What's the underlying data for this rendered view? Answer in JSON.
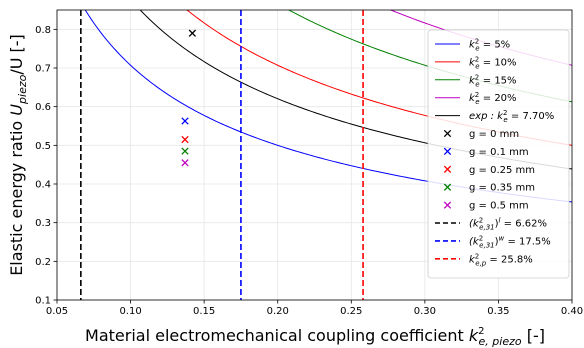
{
  "chart_data": {
    "type": "line",
    "xlabel": "Material electromechanical coupling coefficient",
    "xlabel_symbol": "k",
    "xlabel_sup": "2",
    "xlabel_sub": "e, piezo",
    "xlabel_unit": " [-]",
    "ylabel": "Elastic energy ratio",
    "ylabel_symbol": "U",
    "ylabel_sub": "piezo",
    "ylabel_tail": "/U [-]",
    "xlim": [
      0.05,
      0.4
    ],
    "ylim": [
      0.1,
      0.85
    ],
    "xticks": [
      0.05,
      0.1,
      0.15,
      0.2,
      0.25,
      0.3,
      0.35,
      0.4
    ],
    "xtick_labels": [
      "0.05",
      "0.10",
      "0.15",
      "0.20",
      "0.25",
      "0.30",
      "0.35",
      "0.40"
    ],
    "yticks": [
      0.1,
      0.2,
      0.3,
      0.4,
      0.5,
      0.6,
      0.7,
      0.8
    ],
    "ytick_labels": [
      "0.1",
      "0.2",
      "0.3",
      "0.4",
      "0.5",
      "0.6",
      "0.7",
      "0.8"
    ],
    "grid": true,
    "legend_position": "right",
    "curves": [
      {
        "label_pre": "k",
        "label_sup": "2",
        "label_sub": "e",
        "label_post": " = 5%",
        "k2e": 0.05,
        "color": "#0000ff"
      },
      {
        "label_pre": "k",
        "label_sup": "2",
        "label_sub": "e",
        "label_post": " = 10%",
        "k2e": 0.1,
        "color": "#ff0000"
      },
      {
        "label_pre": "k",
        "label_sup": "2",
        "label_sub": "e",
        "label_post": " = 15%",
        "k2e": 0.15,
        "color": "#008000"
      },
      {
        "label_pre": "k",
        "label_sup": "2",
        "label_sub": "e",
        "label_post": " = 20%",
        "k2e": 0.2,
        "color": "#bf00bf"
      },
      {
        "label_pre": "exp : k",
        "label_sup": "2",
        "label_sub": "e",
        "label_post": " = 7.70%",
        "k2e": 0.077,
        "color": "#000000"
      }
    ],
    "markers": [
      {
        "label": "g = 0 mm",
        "x": 0.142,
        "y": 0.79,
        "color": "#000000"
      },
      {
        "label": "g = 0.1 mm",
        "x": 0.137,
        "y": 0.563,
        "color": "#0000ff"
      },
      {
        "label": "g = 0.25 mm",
        "x": 0.137,
        "y": 0.515,
        "color": "#ff0000"
      },
      {
        "label": "g = 0.35 mm",
        "x": 0.137,
        "y": 0.485,
        "color": "#008000"
      },
      {
        "label": "g = 0.5 mm",
        "x": 0.137,
        "y": 0.455,
        "color": "#bf00bf"
      }
    ],
    "vlines": [
      {
        "label_pre": "(k",
        "label_sup": "2",
        "label_sub": "e,31",
        "label_mid": ")",
        "label_sup2": "l",
        "label_post": " = 6.62%",
        "x": 0.0662,
        "color": "#000000"
      },
      {
        "label_pre": "(k",
        "label_sup": "2",
        "label_sub": "e,31",
        "label_mid": ")",
        "label_sup2": "w",
        "label_post": " = 17.5%",
        "x": 0.175,
        "color": "#0000ff"
      },
      {
        "label_pre": "k",
        "label_sup": "2",
        "label_sub": "e,p",
        "label_mid": "",
        "label_sup2": "",
        "label_post": " = 25.8%",
        "x": 0.258,
        "color": "#ff0000"
      }
    ]
  }
}
